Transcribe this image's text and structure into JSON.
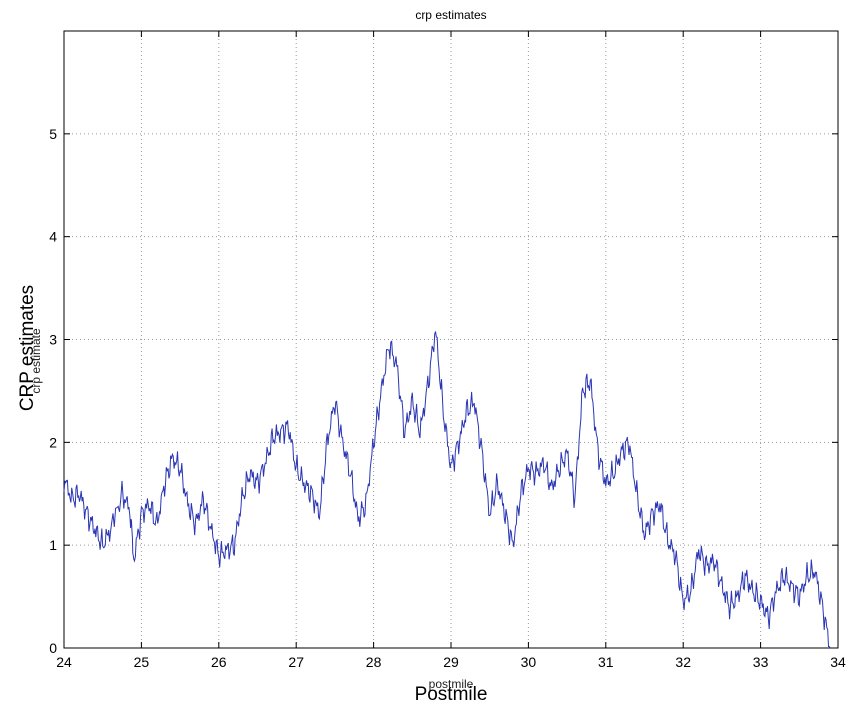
{
  "chart_data": {
    "type": "line",
    "title": "crp estimates",
    "xlabel": "postmile",
    "ylabel": "crp estimate",
    "overlay_xlabel": "Postmile",
    "overlay_ylabel": "CRP estimates",
    "xlim": [
      24,
      34
    ],
    "ylim": [
      0,
      6
    ],
    "xticks": [
      "24",
      "25",
      "26",
      "27",
      "28",
      "29",
      "30",
      "31",
      "32",
      "33",
      "34"
    ],
    "yticks": [
      "0",
      "1",
      "2",
      "3",
      "4",
      "5"
    ],
    "grid": true,
    "line_color": "#2a35b4",
    "series": [
      {
        "x": [
          24.0,
          24.1,
          24.2,
          24.3,
          24.4,
          24.5,
          24.6,
          24.75,
          24.85,
          24.9,
          25.0,
          25.1,
          25.2,
          25.3,
          25.4,
          25.5,
          25.6,
          25.7,
          25.8,
          25.9,
          26.0,
          26.1,
          26.2,
          26.3,
          26.4,
          26.5,
          26.6,
          26.7,
          26.8,
          26.9,
          27.0,
          27.1,
          27.2,
          27.3,
          27.4,
          27.5,
          27.6,
          27.7,
          27.8,
          27.9,
          28.0,
          28.1,
          28.2,
          28.3,
          28.4,
          28.5,
          28.6,
          28.7,
          28.8,
          28.9,
          29.0,
          29.1,
          29.2,
          29.3,
          29.4,
          29.5,
          29.6,
          29.7,
          29.8,
          29.9,
          30.0,
          30.1,
          30.2,
          30.3,
          30.4,
          30.5,
          30.6,
          30.7,
          30.8,
          30.9,
          31.0,
          31.1,
          31.2,
          31.3,
          31.4,
          31.5,
          31.6,
          31.7,
          31.8,
          31.9,
          32.0,
          32.1,
          32.2,
          32.3,
          32.4,
          32.5,
          32.6,
          32.7,
          32.8,
          32.9,
          33.0,
          33.1,
          33.2,
          33.3,
          33.4,
          33.5,
          33.6,
          33.7,
          33.8,
          33.9
        ],
        "y": [
          1.65,
          1.45,
          1.5,
          1.3,
          1.15,
          1.0,
          1.15,
          1.5,
          1.35,
          0.85,
          1.3,
          1.4,
          1.2,
          1.6,
          1.85,
          1.75,
          1.4,
          1.2,
          1.45,
          1.15,
          0.9,
          0.95,
          1.0,
          1.45,
          1.7,
          1.6,
          1.8,
          2.05,
          2.1,
          2.15,
          1.75,
          1.6,
          1.5,
          1.3,
          2.0,
          2.4,
          2.0,
          1.7,
          1.25,
          1.4,
          2.0,
          2.5,
          2.95,
          2.75,
          2.1,
          2.4,
          2.1,
          2.55,
          3.1,
          2.3,
          1.75,
          2.0,
          2.3,
          2.4,
          1.9,
          1.3,
          1.6,
          1.3,
          1.0,
          1.5,
          1.75,
          1.7,
          1.8,
          1.55,
          1.75,
          1.9,
          1.45,
          2.5,
          2.6,
          1.9,
          1.6,
          1.7,
          1.9,
          2.0,
          1.5,
          1.1,
          1.3,
          1.4,
          1.05,
          0.9,
          0.45,
          0.55,
          0.95,
          0.8,
          0.85,
          0.6,
          0.4,
          0.5,
          0.7,
          0.55,
          0.45,
          0.3,
          0.55,
          0.7,
          0.6,
          0.5,
          0.7,
          0.75,
          0.4,
          0.0
        ]
      }
    ]
  }
}
